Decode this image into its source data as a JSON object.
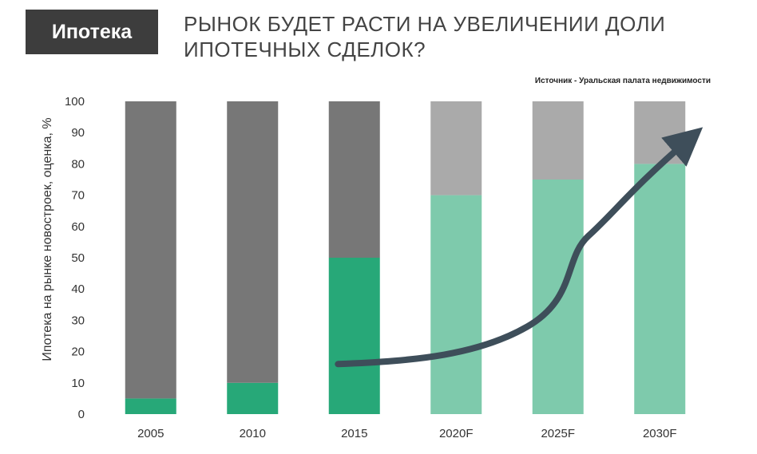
{
  "header": {
    "tag": "Ипотека",
    "title_line1": "РЫНОК БУДЕТ РАСТИ НА УВЕЛИЧЕНИИ ДОЛИ",
    "title_line2": "ИПОТЕЧНЫХ СДЕЛОК?",
    "source": "Источник - Уральская палата недвижимости"
  },
  "chart_data": {
    "type": "bar",
    "stacked": true,
    "categories": [
      "2005",
      "2010",
      "2015",
      "2020F",
      "2025F",
      "2030F"
    ],
    "forecast": [
      false,
      false,
      false,
      true,
      true,
      true
    ],
    "series": [
      {
        "values": [
          5,
          10,
          50,
          70,
          75,
          80
        ]
      },
      {
        "values": [
          95,
          90,
          50,
          30,
          25,
          20
        ]
      }
    ],
    "ylabel": "Ипотека на рынке новостроек, оценка, %",
    "xlabel": "",
    "ylim": [
      0,
      100
    ],
    "yticks": [
      0,
      10,
      20,
      30,
      40,
      50,
      60,
      70,
      80,
      90,
      100
    ],
    "trend_arrow": true,
    "colors": {
      "actual_mortgage": "#27a878",
      "actual_rest": "#777777",
      "forecast_mortgage": "#7ecaac",
      "forecast_rest": "#aaaaaa",
      "arrow": "#3e4e5a"
    }
  }
}
